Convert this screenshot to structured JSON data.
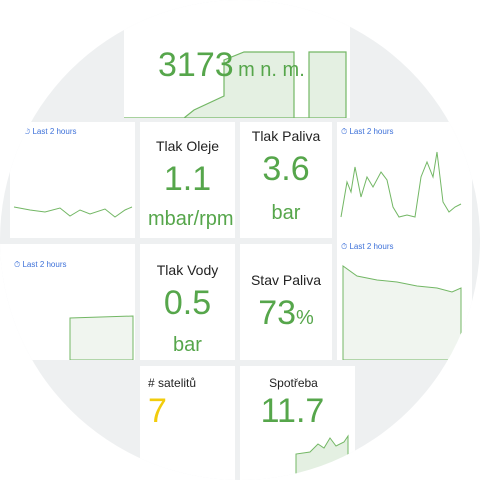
{
  "altitude": {
    "value": "3173",
    "unit": "m n. m."
  },
  "time_labels": [
    "Last 2 hours",
    "Last 2 hours",
    "Last 2 hours",
    "Last 2 hours"
  ],
  "panels": [
    {
      "title": "Tlak Oleje",
      "value": "1.1",
      "unit": "mbar/rpm"
    },
    {
      "title": "Tlak Paliva",
      "value": "3.6",
      "unit": "bar"
    },
    {
      "title": "Tlak Vody",
      "value": "0.5",
      "unit": "bar"
    },
    {
      "title": "Stav Paliva",
      "value": "73",
      "unit": "%"
    },
    {
      "title": "# satelitů",
      "value": "7"
    },
    {
      "title": "Spotřeba",
      "value": "11.7"
    }
  ]
}
